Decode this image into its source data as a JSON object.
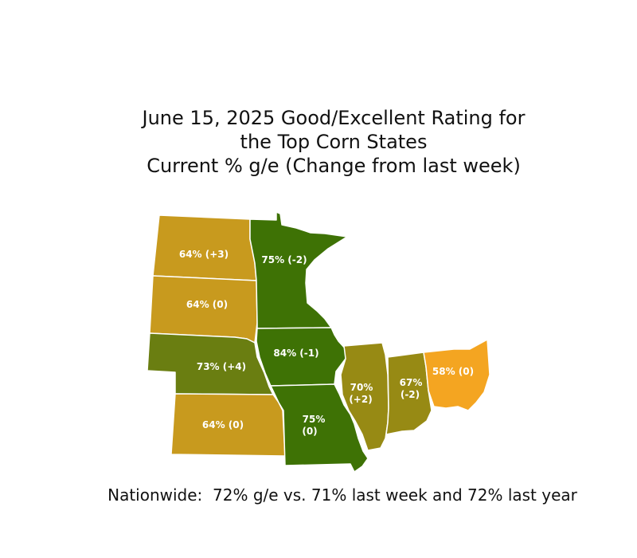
{
  "title": {
    "line1": "June 15, 2025 Good/Excellent Rating for",
    "line2": "the Top Corn States",
    "line3": "Current % g/e (Change from last week)"
  },
  "colors": {
    "mustard": "#C89A1E",
    "dark_green": "#3E7205",
    "olive_green": "#6A7E11",
    "olive": "#978A14",
    "orange": "#F4A521"
  },
  "states": {
    "north_dakota": {
      "label": "64% (+3)",
      "value": 64,
      "change": 3,
      "color": "mustard"
    },
    "south_dakota": {
      "label": "64% (0)",
      "value": 64,
      "change": 0,
      "color": "mustard"
    },
    "nebraska": {
      "label": "73% (+4)",
      "value": 73,
      "change": 4,
      "color": "olive_green"
    },
    "kansas": {
      "label": "64% (0)",
      "value": 64,
      "change": 0,
      "color": "mustard"
    },
    "minnesota": {
      "label": "75% (-2)",
      "value": 75,
      "change": -2,
      "color": "dark_green"
    },
    "iowa": {
      "label": "84% (-1)",
      "value": 84,
      "change": -1,
      "color": "dark_green"
    },
    "missouri": {
      "label_line1": "75%",
      "label_line2": "(0)",
      "value": 75,
      "change": 0,
      "color": "dark_green"
    },
    "illinois": {
      "label_line1": "70%",
      "label_line2": "(+2)",
      "value": 70,
      "change": 2,
      "color": "olive"
    },
    "indiana": {
      "label_line1": "67%",
      "label_line2": "(-2)",
      "value": 67,
      "change": -2,
      "color": "olive"
    },
    "ohio": {
      "label": "58% (0)",
      "value": 58,
      "change": 0,
      "color": "orange"
    }
  },
  "footer": "Nationwide:  72% g/e vs. 71% last week and 72% last year"
}
